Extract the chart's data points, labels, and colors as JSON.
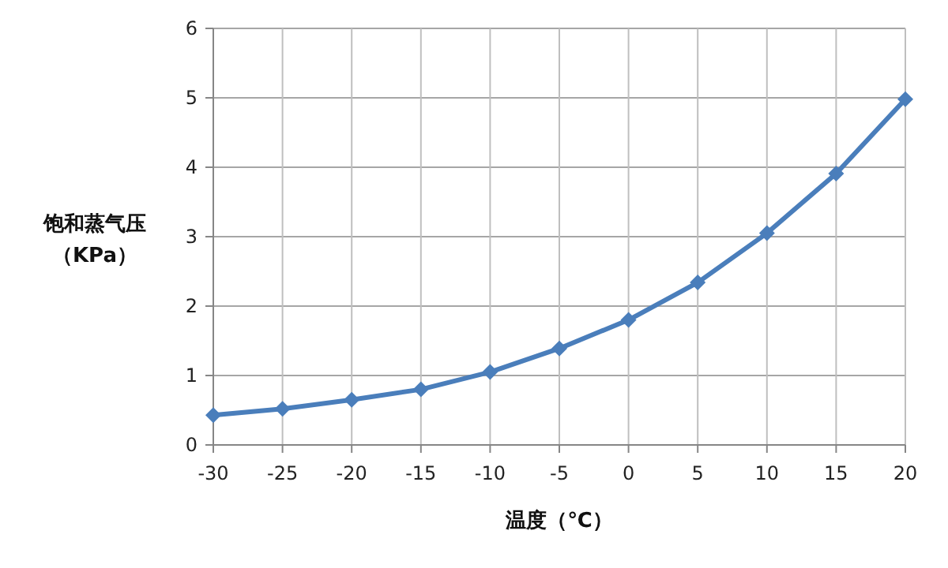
{
  "chart_data": {
    "type": "line",
    "xlabel": "温度（℃）",
    "ylabel": "饱和蒸气压（KPa）",
    "x": [
      -30,
      -25,
      -20,
      -15,
      -10,
      -5,
      0,
      5,
      10,
      15,
      20
    ],
    "series": [
      {
        "color": "#4a7ebb",
        "values": [
          0.43,
          0.52,
          0.65,
          0.8,
          1.05,
          1.39,
          1.8,
          2.34,
          3.05,
          3.91,
          4.98
        ]
      }
    ],
    "xlim": [
      -30,
      20
    ],
    "xticks": [
      -30,
      -25,
      -20,
      -15,
      -10,
      -5,
      0,
      5,
      10,
      15,
      20
    ],
    "ylim": [
      0,
      6
    ],
    "yticks": [
      0,
      1,
      2,
      3,
      4,
      5,
      6
    ],
    "grid": true,
    "marker": "diamond",
    "line_style": "solid"
  }
}
